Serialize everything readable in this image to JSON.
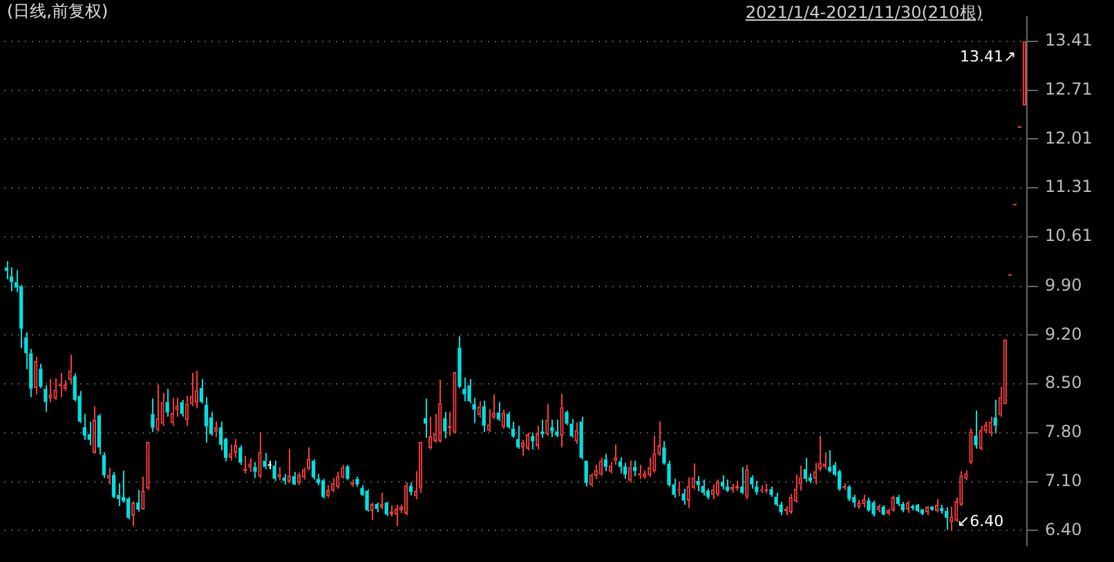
{
  "chart_data": {
    "type": "candlestick",
    "title": "(日线,前复权)",
    "categories": [
      null,
      null,
      null,
      null,
      null,
      null,
      null,
      null,
      null,
      null,
      null,
      null,
      null,
      null,
      null,
      null,
      null,
      null,
      null,
      null,
      null,
      null,
      null,
      null,
      null,
      null,
      null,
      null,
      null,
      null,
      null,
      null,
      null,
      null,
      null,
      null,
      null,
      null,
      null,
      null,
      null,
      null,
      null,
      null,
      null,
      null,
      null,
      null,
      null,
      null,
      null,
      null,
      null,
      null,
      null,
      null,
      null,
      null,
      null,
      null,
      null,
      null,
      null,
      null,
      null,
      null,
      null,
      null,
      null,
      null,
      null,
      null,
      null,
      null,
      null,
      null,
      null,
      null,
      null,
      null,
      null,
      null,
      null,
      null,
      null,
      null,
      null,
      null,
      null,
      null,
      null,
      null,
      null,
      null,
      null,
      null,
      null,
      null,
      null,
      null,
      null,
      null,
      null,
      null,
      null,
      null,
      null,
      null,
      null,
      null,
      null,
      null,
      null,
      null,
      null,
      null,
      null,
      null,
      null,
      null,
      null,
      null,
      null,
      null,
      null,
      null,
      null,
      null,
      null,
      null,
      null,
      null,
      null,
      null,
      null,
      null,
      null,
      null,
      null,
      null,
      null,
      null,
      null,
      null,
      null,
      null,
      null,
      null,
      null,
      null,
      null,
      null,
      null,
      null,
      null,
      null,
      null,
      null,
      null,
      null,
      null,
      null,
      null,
      null,
      null,
      null,
      null,
      null,
      null,
      null,
      null,
      null,
      null,
      null,
      null,
      null,
      null,
      null,
      null,
      null,
      null,
      null,
      null,
      null,
      null,
      null,
      null,
      null,
      null,
      null,
      null,
      null,
      null,
      null,
      null,
      null,
      null,
      null,
      null,
      null,
      null,
      null,
      null,
      null,
      null,
      null,
      null,
      null,
      null,
      null
    ],
    "ohlc": [
      [
        10.17,
        10.26,
        10.0,
        10.12
      ],
      [
        10.04,
        10.17,
        9.83,
        9.96
      ],
      [
        9.96,
        10.13,
        9.82,
        9.88
      ],
      [
        9.9,
        9.92,
        9.01,
        9.29
      ],
      [
        9.17,
        9.24,
        8.71,
        8.94
      ],
      [
        8.94,
        9.0,
        8.31,
        8.43
      ],
      [
        8.44,
        8.89,
        8.35,
        8.83
      ],
      [
        8.72,
        8.79,
        8.44,
        8.46
      ],
      [
        8.43,
        8.48,
        8.1,
        8.24
      ],
      [
        8.29,
        8.57,
        8.24,
        8.35
      ],
      [
        8.29,
        8.58,
        8.27,
        8.42
      ],
      [
        8.47,
        8.66,
        8.31,
        8.49
      ],
      [
        8.43,
        8.55,
        8.4,
        8.49
      ],
      [
        8.56,
        8.92,
        8.49,
        8.69
      ],
      [
        8.61,
        8.65,
        8.25,
        8.27
      ],
      [
        8.33,
        8.4,
        7.94,
        7.96
      ],
      [
        7.88,
        8.07,
        7.7,
        7.76
      ],
      [
        7.78,
        7.96,
        7.62,
        7.7
      ],
      [
        7.51,
        8.18,
        7.5,
        7.99
      ],
      [
        8.05,
        8.07,
        7.49,
        7.59
      ],
      [
        7.48,
        7.52,
        7.15,
        7.19
      ],
      [
        7.14,
        7.3,
        7.06,
        7.2
      ],
      [
        7.2,
        7.24,
        6.86,
        6.88
      ],
      [
        6.91,
        7.08,
        6.75,
        6.85
      ],
      [
        6.88,
        7.26,
        6.8,
        6.82
      ],
      [
        6.86,
        6.88,
        6.56,
        6.58
      ],
      [
        6.61,
        6.82,
        6.46,
        6.8
      ],
      [
        6.8,
        6.98,
        6.67,
        6.7
      ],
      [
        6.7,
        7.17,
        6.7,
        6.97
      ],
      [
        7.0,
        7.67,
        6.98,
        7.67
      ],
      [
        8.07,
        8.29,
        7.81,
        7.87
      ],
      [
        7.84,
        8.49,
        7.82,
        8.01
      ],
      [
        7.93,
        8.37,
        7.9,
        8.24
      ],
      [
        8.24,
        8.43,
        8.03,
        8.09
      ],
      [
        7.94,
        8.3,
        7.9,
        8.09
      ],
      [
        8.12,
        8.3,
        8.03,
        8.19
      ],
      [
        8.24,
        8.27,
        8.03,
        8.07
      ],
      [
        7.98,
        8.33,
        7.9,
        8.22
      ],
      [
        8.21,
        8.66,
        8.18,
        8.33
      ],
      [
        8.23,
        8.69,
        8.15,
        8.41
      ],
      [
        8.44,
        8.57,
        8.22,
        8.24
      ],
      [
        8.2,
        8.31,
        7.66,
        7.89
      ],
      [
        8.02,
        8.1,
        7.76,
        7.78
      ],
      [
        7.81,
        7.96,
        7.74,
        7.88
      ],
      [
        7.88,
        7.96,
        7.55,
        7.63
      ],
      [
        7.71,
        7.73,
        7.39,
        7.44
      ],
      [
        7.44,
        7.63,
        7.4,
        7.51
      ],
      [
        7.51,
        7.71,
        7.44,
        7.62
      ],
      [
        7.59,
        7.62,
        7.34,
        7.37
      ],
      [
        7.25,
        7.47,
        7.22,
        7.29
      ],
      [
        7.3,
        7.43,
        7.24,
        7.36
      ],
      [
        7.31,
        7.38,
        7.15,
        7.24
      ],
      [
        7.17,
        7.81,
        7.15,
        7.53
      ],
      [
        7.4,
        7.51,
        7.28,
        7.31
      ],
      [
        7.33,
        7.4,
        7.28,
        7.33
      ],
      [
        7.33,
        7.4,
        7.11,
        7.14
      ],
      [
        7.16,
        7.31,
        7.12,
        7.21
      ],
      [
        7.16,
        7.21,
        7.06,
        7.11
      ],
      [
        7.1,
        7.57,
        7.08,
        7.19
      ],
      [
        7.18,
        7.24,
        7.05,
        7.06
      ],
      [
        7.08,
        7.23,
        7.05,
        7.2
      ],
      [
        7.16,
        7.3,
        7.13,
        7.28
      ],
      [
        7.28,
        7.59,
        7.26,
        7.43
      ],
      [
        7.4,
        7.42,
        7.13,
        7.16
      ],
      [
        7.14,
        7.21,
        7.05,
        7.08
      ],
      [
        7.12,
        7.14,
        6.86,
        6.88
      ],
      [
        6.89,
        7.05,
        6.87,
        6.98
      ],
      [
        6.97,
        7.15,
        6.95,
        7.08
      ],
      [
        7.02,
        7.24,
        7.0,
        7.18
      ],
      [
        7.16,
        7.34,
        7.14,
        7.31
      ],
      [
        7.32,
        7.34,
        7.12,
        7.14
      ],
      [
        7.05,
        7.13,
        7.03,
        7.09
      ],
      [
        7.14,
        7.17,
        7.03,
        7.06
      ],
      [
        7.01,
        7.05,
        6.89,
        6.91
      ],
      [
        6.97,
        6.99,
        6.67,
        6.69
      ],
      [
        6.68,
        6.8,
        6.55,
        6.78
      ],
      [
        6.78,
        6.8,
        6.66,
        6.71
      ],
      [
        6.73,
        6.94,
        6.7,
        6.78
      ],
      [
        6.8,
        6.81,
        6.61,
        6.63
      ],
      [
        6.63,
        6.76,
        6.6,
        6.67
      ],
      [
        6.63,
        6.77,
        6.46,
        6.71
      ],
      [
        6.69,
        6.77,
        6.65,
        6.74
      ],
      [
        6.64,
        7.09,
        6.62,
        7.05
      ],
      [
        7.04,
        7.09,
        6.9,
        6.95
      ],
      [
        6.89,
        7.25,
        6.85,
        6.97
      ],
      [
        7.01,
        7.67,
        6.94,
        7.67
      ],
      [
        8.01,
        8.29,
        7.73,
        7.93
      ],
      [
        7.58,
        8.03,
        7.56,
        7.75
      ],
      [
        7.68,
        8.07,
        7.66,
        7.79
      ],
      [
        7.68,
        8.56,
        7.66,
        8.23
      ],
      [
        8.01,
        8.1,
        7.72,
        7.82
      ],
      [
        7.86,
        8.1,
        7.76,
        7.9
      ],
      [
        7.81,
        8.67,
        7.79,
        8.67
      ],
      [
        9.02,
        9.18,
        8.44,
        8.46
      ],
      [
        8.43,
        8.59,
        8.25,
        8.35
      ],
      [
        8.48,
        8.57,
        8.22,
        8.25
      ],
      [
        8.21,
        8.3,
        7.94,
        8.13
      ],
      [
        8.05,
        8.25,
        8.02,
        8.18
      ],
      [
        8.18,
        8.26,
        7.81,
        7.9
      ],
      [
        7.83,
        8.14,
        7.81,
        7.92
      ],
      [
        8.02,
        8.35,
        8.0,
        8.09
      ],
      [
        8.09,
        8.24,
        7.97,
        7.99
      ],
      [
        7.88,
        8.13,
        7.86,
        8.09
      ],
      [
        8.07,
        8.1,
        7.86,
        7.88
      ],
      [
        7.86,
        7.96,
        7.73,
        7.75
      ],
      [
        7.71,
        7.9,
        7.57,
        7.59
      ],
      [
        7.59,
        7.7,
        7.47,
        7.66
      ],
      [
        7.57,
        7.8,
        7.55,
        7.78
      ],
      [
        7.75,
        7.8,
        7.56,
        7.68
      ],
      [
        7.61,
        7.9,
        7.56,
        7.79
      ],
      [
        7.82,
        7.99,
        7.73,
        7.78
      ],
      [
        7.78,
        8.21,
        7.76,
        7.99
      ],
      [
        7.88,
        7.99,
        7.74,
        7.82
      ],
      [
        7.82,
        7.99,
        7.74,
        7.76
      ],
      [
        7.76,
        8.36,
        7.59,
        8.17
      ],
      [
        8.1,
        8.12,
        7.91,
        7.93
      ],
      [
        7.93,
        8.0,
        7.73,
        7.75
      ],
      [
        7.68,
        7.95,
        7.64,
        7.84
      ],
      [
        7.96,
        8.03,
        7.42,
        7.44
      ],
      [
        7.4,
        7.4,
        7.03,
        7.08
      ],
      [
        7.05,
        7.22,
        7.03,
        7.2
      ],
      [
        7.18,
        7.34,
        7.14,
        7.27
      ],
      [
        7.2,
        7.44,
        7.18,
        7.4
      ],
      [
        7.42,
        7.5,
        7.25,
        7.31
      ],
      [
        7.24,
        7.38,
        7.22,
        7.33
      ],
      [
        7.4,
        7.63,
        7.34,
        7.45
      ],
      [
        7.39,
        7.45,
        7.22,
        7.31
      ],
      [
        7.32,
        7.37,
        7.14,
        7.2
      ],
      [
        7.11,
        7.4,
        7.09,
        7.31
      ],
      [
        7.31,
        7.4,
        7.18,
        7.25
      ],
      [
        7.19,
        7.34,
        7.14,
        7.22
      ],
      [
        7.16,
        7.26,
        7.14,
        7.22
      ],
      [
        7.19,
        7.44,
        7.17,
        7.31
      ],
      [
        7.25,
        7.76,
        7.23,
        7.51
      ],
      [
        7.49,
        7.96,
        7.47,
        7.62
      ],
      [
        7.59,
        7.68,
        7.34,
        7.36
      ],
      [
        7.36,
        7.4,
        7.03,
        7.05
      ],
      [
        7.06,
        7.14,
        6.87,
        6.91
      ],
      [
        6.97,
        7.1,
        6.89,
        6.99
      ],
      [
        6.93,
        7.0,
        6.77,
        6.83
      ],
      [
        6.83,
        7.16,
        6.72,
        7.04
      ],
      [
        7.01,
        7.36,
        6.99,
        7.16
      ],
      [
        7.11,
        7.18,
        6.96,
        7.05
      ],
      [
        7.04,
        7.13,
        6.9,
        6.94
      ],
      [
        6.97,
        7.0,
        6.85,
        6.88
      ],
      [
        6.91,
        7.06,
        6.85,
        6.99
      ],
      [
        6.91,
        7.13,
        6.89,
        7.1
      ],
      [
        7.1,
        7.19,
        6.99,
        7.03
      ],
      [
        7.03,
        7.13,
        6.95,
        6.97
      ],
      [
        6.98,
        7.07,
        6.94,
        7.03
      ],
      [
        7.0,
        7.11,
        6.97,
        7.04
      ],
      [
        7.03,
        7.31,
        6.92,
        6.94
      ],
      [
        6.88,
        7.34,
        6.85,
        7.28
      ],
      [
        7.16,
        7.19,
        7.0,
        7.06
      ],
      [
        7.03,
        7.11,
        6.91,
        6.95
      ],
      [
        6.97,
        7.05,
        6.94,
        6.99
      ],
      [
        6.96,
        7.07,
        6.93,
        6.99
      ],
      [
        6.99,
        7.03,
        6.88,
        6.91
      ],
      [
        6.88,
        6.94,
        6.75,
        6.77
      ],
      [
        6.77,
        6.81,
        6.62,
        6.66
      ],
      [
        6.68,
        6.75,
        6.62,
        6.71
      ],
      [
        6.66,
        6.92,
        6.64,
        6.88
      ],
      [
        6.82,
        7.2,
        6.8,
        7.0
      ],
      [
        7.06,
        7.33,
        6.97,
        7.16
      ],
      [
        7.28,
        7.44,
        7.1,
        7.14
      ],
      [
        7.16,
        7.22,
        7.08,
        7.11
      ],
      [
        7.14,
        7.37,
        7.06,
        7.25
      ],
      [
        7.28,
        7.76,
        7.25,
        7.37
      ],
      [
        7.31,
        7.52,
        7.28,
        7.36
      ],
      [
        7.31,
        7.55,
        7.23,
        7.25
      ],
      [
        7.34,
        7.38,
        7.18,
        7.2
      ],
      [
        7.25,
        7.27,
        6.97,
        6.99
      ],
      [
        7.01,
        7.08,
        6.98,
        7.04
      ],
      [
        7.03,
        7.05,
        6.82,
        6.85
      ],
      [
        6.88,
        6.91,
        6.73,
        6.8
      ],
      [
        6.74,
        6.84,
        6.71,
        6.8
      ],
      [
        6.78,
        6.91,
        6.73,
        6.85
      ],
      [
        6.83,
        6.87,
        6.67,
        6.69
      ],
      [
        6.8,
        6.83,
        6.6,
        6.63
      ],
      [
        6.69,
        6.77,
        6.66,
        6.75
      ],
      [
        6.74,
        6.76,
        6.62,
        6.63
      ],
      [
        6.64,
        6.71,
        6.62,
        6.69
      ],
      [
        6.69,
        6.9,
        6.67,
        6.88
      ],
      [
        6.88,
        6.91,
        6.75,
        6.78
      ],
      [
        6.78,
        6.81,
        6.66,
        6.69
      ],
      [
        6.7,
        6.82,
        6.65,
        6.8
      ],
      [
        6.75,
        6.77,
        6.69,
        6.72
      ],
      [
        6.77,
        6.78,
        6.66,
        6.68
      ],
      [
        6.7,
        6.71,
        6.62,
        6.64
      ],
      [
        6.66,
        6.75,
        6.62,
        6.74
      ],
      [
        6.74,
        6.75,
        6.68,
        6.7
      ],
      [
        6.68,
        6.85,
        6.66,
        6.77
      ],
      [
        6.72,
        6.77,
        6.64,
        6.68
      ],
      [
        6.68,
        6.73,
        6.41,
        6.58
      ],
      [
        6.52,
        6.74,
        6.4,
        6.6
      ],
      [
        6.54,
        6.87,
        6.52,
        6.82
      ],
      [
        6.77,
        7.25,
        6.75,
        7.19
      ],
      [
        7.14,
        7.26,
        7.12,
        7.22
      ],
      [
        7.37,
        7.86,
        7.35,
        7.82
      ],
      [
        7.76,
        8.12,
        7.57,
        7.62
      ],
      [
        7.57,
        7.9,
        7.55,
        7.84
      ],
      [
        7.82,
        7.96,
        7.8,
        7.92
      ],
      [
        7.79,
        8.03,
        7.75,
        7.96
      ],
      [
        8.02,
        8.27,
        7.79,
        7.9
      ],
      [
        8.05,
        8.46,
        8.03,
        8.31
      ],
      [
        8.21,
        9.14,
        8.21,
        9.14
      ],
      [
        10.05,
        10.05,
        10.05,
        10.05
      ],
      [
        11.06,
        11.06,
        11.06,
        11.06
      ],
      [
        12.17,
        12.17,
        12.17,
        12.17
      ],
      [
        12.49,
        13.41,
        12.49,
        13.41
      ]
    ],
    "colors": [
      "#00e0e0",
      "#00e0e0",
      "#00e0e0",
      "#00e0e0",
      "#00e0e0",
      "#00e0e0",
      "#ff3c3c",
      "#00e0e0",
      "#00e0e0",
      "#ff3c3c",
      "#ff3c3c",
      "#ff3c3c",
      "#ff3c3c",
      "#ff3c3c",
      "#00e0e0",
      "#00e0e0",
      "#00e0e0",
      "#00e0e0",
      "#ff3c3c",
      "#00e0e0",
      "#00e0e0",
      "#ff3c3c",
      "#00e0e0",
      "#00e0e0",
      "#00e0e0",
      "#00e0e0",
      "#ff3c3c",
      "#00e0e0",
      "#ff3c3c",
      "#ff3c3c",
      "#00e0e0",
      "#ff3c3c",
      "#ff3c3c",
      "#00e0e0",
      "#ff3c3c",
      "#ff3c3c",
      "#00e0e0",
      "#ff3c3c",
      "#ff3c3c",
      "#ff3c3c",
      "#00e0e0",
      "#00e0e0",
      "#00e0e0",
      "#ff3c3c",
      "#00e0e0",
      "#00e0e0",
      "#ff3c3c",
      "#ff3c3c",
      "#00e0e0",
      "#ff3c3c",
      "#ff3c3c",
      "#00e0e0",
      "#ff3c3c",
      "#00e0e0",
      "#ffffff",
      "#00e0e0",
      "#ff3c3c",
      "#00e0e0",
      "#ff3c3c",
      "#00e0e0",
      "#ff3c3c",
      "#ff3c3c",
      "#ff3c3c",
      "#00e0e0",
      "#00e0e0",
      "#00e0e0",
      "#ff3c3c",
      "#ff3c3c",
      "#ff3c3c",
      "#ff3c3c",
      "#00e0e0",
      "#ff3c3c",
      "#00e0e0",
      "#00e0e0",
      "#00e0e0",
      "#ff3c3c",
      "#00e0e0",
      "#ff3c3c",
      "#00e0e0",
      "#ff3c3c",
      "#ff3c3c",
      "#ff3c3c",
      "#ff3c3c",
      "#00e0e0",
      "#ff3c3c",
      "#ff3c3c",
      "#00e0e0",
      "#ff3c3c",
      "#ff3c3c",
      "#ff3c3c",
      "#00e0e0",
      "#ff3c3c",
      "#ff3c3c",
      "#00e0e0",
      "#00e0e0",
      "#00e0e0",
      "#00e0e0",
      "#ff3c3c",
      "#00e0e0",
      "#ff3c3c",
      "#ff3c3c",
      "#00e0e0",
      "#ff3c3c",
      "#00e0e0",
      "#00e0e0",
      "#00e0e0",
      "#ff3c3c",
      "#ff3c3c",
      "#00e0e0",
      "#ff3c3c",
      "#00e0e0",
      "#ff3c3c",
      "#00e0e0",
      "#00e0e0",
      "#ff3c3c",
      "#00e0e0",
      "#00e0e0",
      "#ff3c3c",
      "#00e0e0",
      "#00e0e0",
      "#ff3c3c",
      "#ff3c3c",
      "#ff3c3c",
      "#00e0e0",
      "#ff3c3c",
      "#ff3c3c",
      "#00e0e0",
      "#00e0e0",
      "#ff3c3c",
      "#00e0e0",
      "#ff3c3c",
      "#ff3c3c",
      "#ff3c3c",
      "#ff3c3c",
      "#ff3c3c",
      "#00e0e0",
      "#00e0e0",
      "#00e0e0",
      "#ff3c3c",
      "#00e0e0",
      "#ff3c3c",
      "#ff3c3c",
      "#00e0e0",
      "#00e0e0",
      "#00e0e0",
      "#ff3c3c",
      "#ff3c3c",
      "#00e0e0",
      "#00e0e0",
      "#ff3c3c",
      "#ff3c3c",
      "#00e0e0",
      "#ff3c3c",
      "#00e0e0",
      "#00e0e0",
      "#ff3c3c",
      "#ff3c3c",
      "#00e0e0",
      "#00e0e0",
      "#00e0e0",
      "#ff3c3c",
      "#ff3c3c",
      "#ff3c3c",
      "#ff3c3c",
      "#00e0e0",
      "#00e0e0",
      "#ff3c3c",
      "#ff3c3c",
      "#ff3c3c",
      "#00e0e0",
      "#00e0e0",
      "#00e0e0",
      "#ff3c3c",
      "#00e0e0",
      "#00e0e0",
      "#ff3c3c",
      "#ff3c3c",
      "#00e0e0",
      "#00e0e0",
      "#ff3c3c",
      "#00e0e0",
      "#ff3c3c",
      "#ff3c3c",
      "#00e0e0",
      "#00e0e0",
      "#ff3c3c",
      "#00e0e0",
      "#00e0e0",
      "#00e0e0",
      "#ff3c3c",
      "#00e0e0",
      "#ff3c3c",
      "#00e0e0",
      "#00e0e0",
      "#ff3c3c",
      "#ff3c3c",
      "#ff3c3c",
      "#ff3c3c",
      "#ff3c3c",
      "#00e0e0",
      "#ff3c3c",
      "#ff3c3c",
      "#ff3c3c",
      "#00e0e0",
      "#ff3c3c",
      "#ff3c3c",
      "#ff3c3c",
      "#ff3c3c",
      "#ff3c3c",
      "#ff3c3c"
    ],
    "ylim": [
      6.19,
      13.76
    ],
    "yticks": [
      {
        "value": 6.4,
        "label": "6.40"
      },
      {
        "value": 7.1,
        "label": "7.10"
      },
      {
        "value": 7.8,
        "label": "7.80"
      },
      {
        "value": 8.5,
        "label": "8.50"
      },
      {
        "value": 9.2,
        "label": "9.20"
      },
      {
        "value": 9.9,
        "label": "9.90"
      },
      10.61,
      11.31,
      12.01,
      12.71,
      13.41
    ],
    "tick_labels": "y",
    "grid": "y",
    "legend": false,
    "annotations": [
      "2021/1/4-2021/11/30(210根)",
      "13.41↗",
      "↙6.40"
    ]
  }
}
